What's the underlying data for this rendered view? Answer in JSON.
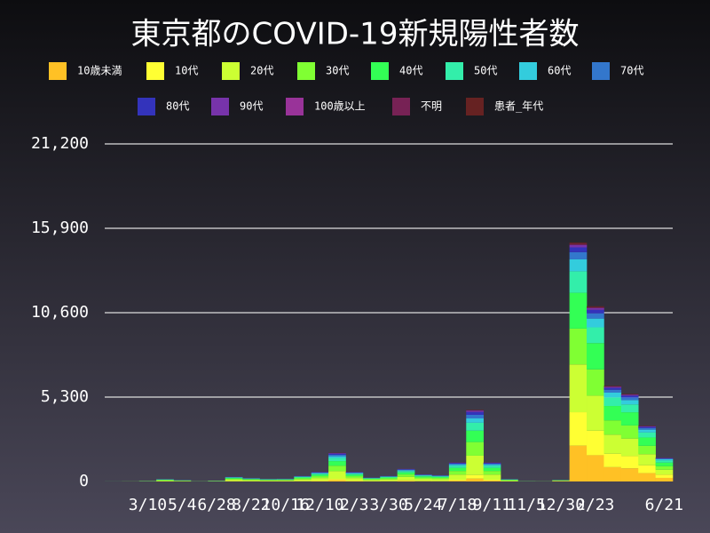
{
  "chart_data": {
    "type": "stacked-bar",
    "title": "東京都のCOVID-19新規陽性者数",
    "categories": [
      null,
      null,
      "3/10",
      null,
      "5/4",
      null,
      "6/28",
      null,
      "8/22",
      null,
      "10/16",
      null,
      "12/10",
      null,
      "2/3",
      null,
      "3/30",
      null,
      "5/24",
      null,
      "7/18",
      null,
      "9/11",
      null,
      "11/5",
      null,
      "12/30",
      null,
      "2/23",
      null,
      null,
      null,
      "6/21"
    ],
    "series": [
      {
        "name": "10歳未満",
        "color": "#ffc125",
        "values": [
          0,
          0,
          2,
          6,
          4,
          1,
          2,
          12,
          9,
          7,
          7,
          14,
          24,
          72,
          24,
          10,
          14,
          32,
          18,
          16,
          48,
          180,
          48,
          6,
          1,
          1,
          15,
          2250,
          1650,
          900,
          825,
          525,
          225
        ]
      },
      {
        "name": "10代",
        "color": "#ffff33",
        "values": [
          0,
          1,
          2,
          8,
          5,
          1,
          3,
          15,
          11,
          9,
          9,
          18,
          30,
          90,
          30,
          13,
          18,
          40,
          23,
          20,
          60,
          225,
          60,
          8,
          1,
          1,
          14,
          2100,
          1540,
          840,
          770,
          490,
          210
        ]
      },
      {
        "name": "20代",
        "color": "#ccff33",
        "values": [
          1,
          3,
          11,
          41,
          24,
          5,
          16,
          81,
          59,
          46,
          49,
          95,
          162,
          486,
          162,
          68,
          95,
          216,
          122,
          108,
          324,
          1215,
          324,
          41,
          7,
          4,
          20,
          3000,
          2200,
          1200,
          1100,
          700,
          300
        ]
      },
      {
        "name": "30代",
        "color": "#80ff33",
        "values": [
          1,
          2,
          8,
          29,
          17,
          4,
          11,
          57,
          42,
          32,
          34,
          67,
          114,
          342,
          114,
          48,
          67,
          152,
          86,
          76,
          228,
          855,
          228,
          29,
          5,
          3,
          15,
          2250,
          1650,
          900,
          825,
          525,
          225
        ]
      },
      {
        "name": "40代",
        "color": "#33ff55",
        "values": [
          1,
          2,
          6,
          24,
          14,
          3,
          10,
          48,
          35,
          27,
          29,
          56,
          96,
          288,
          96,
          40,
          56,
          128,
          72,
          64,
          192,
          720,
          192,
          24,
          4,
          2,
          15,
          2250,
          1650,
          900,
          825,
          525,
          225
        ]
      },
      {
        "name": "50代",
        "color": "#33eeaa",
        "values": [
          1,
          1,
          4,
          17,
          10,
          2,
          7,
          33,
          24,
          19,
          20,
          39,
          66,
          198,
          66,
          28,
          39,
          88,
          50,
          44,
          132,
          495,
          132,
          17,
          3,
          2,
          9,
          1350,
          990,
          540,
          495,
          315,
          135
        ]
      },
      {
        "name": "60代",
        "color": "#33ccdd",
        "values": [
          1,
          1,
          3,
          9,
          5,
          1,
          4,
          18,
          13,
          10,
          11,
          21,
          36,
          108,
          36,
          15,
          21,
          48,
          27,
          24,
          72,
          270,
          72,
          9,
          2,
          1,
          5,
          750,
          550,
          300,
          275,
          175,
          75
        ]
      },
      {
        "name": "70代",
        "color": "#3377cc",
        "values": [
          0,
          0,
          2,
          8,
          5,
          1,
          3,
          15,
          11,
          9,
          9,
          18,
          30,
          90,
          30,
          13,
          18,
          40,
          23,
          20,
          60,
          225,
          60,
          8,
          1,
          1,
          3,
          450,
          330,
          180,
          165,
          105,
          45
        ]
      },
      {
        "name": "80代",
        "color": "#3333bb",
        "values": [
          0,
          0,
          1,
          6,
          4,
          1,
          2,
          12,
          9,
          7,
          7,
          14,
          24,
          72,
          24,
          10,
          14,
          32,
          18,
          16,
          48,
          180,
          48,
          6,
          1,
          0,
          2,
          300,
          220,
          120,
          110,
          70,
          30
        ]
      },
      {
        "name": "90代",
        "color": "#7733aa",
        "values": [
          0,
          0,
          1,
          3,
          2,
          0,
          1,
          6,
          4,
          3,
          4,
          7,
          12,
          36,
          12,
          5,
          7,
          16,
          9,
          8,
          24,
          90,
          24,
          3,
          0,
          0,
          1,
          150,
          110,
          60,
          55,
          35,
          15
        ]
      },
      {
        "name": "100歳以上",
        "color": "#993399",
        "values": [
          0,
          0,
          0,
          0,
          0,
          0,
          0,
          0,
          0,
          0,
          0,
          0,
          0,
          1,
          0,
          0,
          0,
          0,
          0,
          0,
          0,
          1,
          0,
          0,
          0,
          0,
          0,
          3,
          2,
          1,
          1,
          0,
          0
        ]
      },
      {
        "name": "不明",
        "color": "#772255",
        "values": [
          0,
          0,
          0,
          1,
          0,
          0,
          0,
          2,
          1,
          1,
          1,
          2,
          3,
          9,
          3,
          1,
          2,
          4,
          2,
          2,
          6,
          22,
          6,
          1,
          0,
          0,
          1,
          75,
          55,
          30,
          27,
          18,
          8
        ]
      },
      {
        "name": "患者_年代",
        "color": "#662222",
        "values": [
          0,
          0,
          0,
          1,
          0,
          0,
          0,
          2,
          1,
          1,
          1,
          2,
          3,
          9,
          3,
          1,
          2,
          4,
          2,
          2,
          6,
          22,
          6,
          1,
          0,
          0,
          1,
          75,
          55,
          30,
          27,
          18,
          8
        ]
      }
    ],
    "ylim": [
      0,
      21200
    ],
    "yticks": [
      0,
      {
        "value": 5300,
        "label": "5,300"
      },
      {
        "value": 10600,
        "label": "10,600"
      },
      {
        "value": 15900,
        "label": "15,900"
      },
      {
        "value": 21200,
        "label": "21,200"
      }
    ],
    "grid": true
  }
}
